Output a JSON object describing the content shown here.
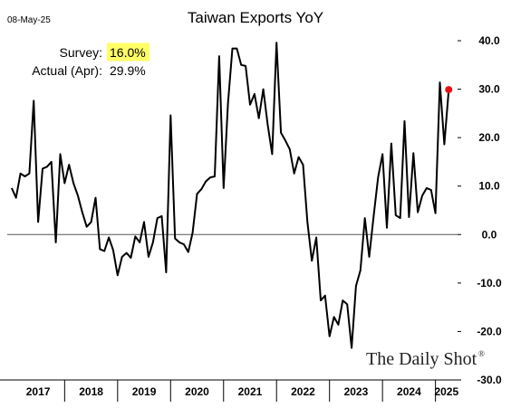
{
  "header": {
    "date": "08-May-25"
  },
  "annotations": {
    "survey_label": "Survey:",
    "survey_value": "16.0%",
    "actual_label": "Actual (Apr):",
    "actual_value": "29.9%",
    "highlight_color": "#ffff66"
  },
  "branding": {
    "name": "The Daily Shot",
    "mark": "®"
  },
  "colors": {
    "line": "#000000",
    "marker": "#e81010",
    "zero_line": "#555555"
  },
  "chart_data": {
    "type": "line",
    "title": "Taiwan Exports YoY",
    "xlabel": "",
    "ylabel": "",
    "ylim": [
      -30,
      40
    ],
    "xlim": [
      "2016-12",
      "2025-06"
    ],
    "y_ticks": [
      40,
      30,
      20,
      10,
      0,
      -10,
      -20,
      -30
    ],
    "y_tick_labels": [
      "40.0",
      "30.0",
      "20.0",
      "10.0",
      "0.0",
      "-10.0",
      "-20.0",
      "-30.0"
    ],
    "x_tick_labels": [
      "2017",
      "2018",
      "2019",
      "2020",
      "2021",
      "2022",
      "2023",
      "2024",
      "2025"
    ],
    "y_axis_position": "right",
    "grid": false,
    "series": [
      {
        "x": [
          "2017-01",
          "2017-02",
          "2017-03",
          "2017-04",
          "2017-05",
          "2017-06",
          "2017-07",
          "2017-08",
          "2017-09",
          "2017-10",
          "2017-11",
          "2017-12",
          "2018-01",
          "2018-02",
          "2018-03",
          "2018-04",
          "2018-05",
          "2018-06",
          "2018-07",
          "2018-08",
          "2018-09",
          "2018-10",
          "2018-11",
          "2018-12",
          "2019-01",
          "2019-02",
          "2019-03",
          "2019-04",
          "2019-05",
          "2019-06",
          "2019-07",
          "2019-08",
          "2019-09",
          "2019-10",
          "2019-11",
          "2019-12",
          "2020-01",
          "2020-02",
          "2020-03",
          "2020-04",
          "2020-05",
          "2020-06",
          "2020-07",
          "2020-08",
          "2020-09",
          "2020-10",
          "2020-11",
          "2020-12",
          "2021-01",
          "2021-02",
          "2021-03",
          "2021-04",
          "2021-05",
          "2021-06",
          "2021-07",
          "2021-08",
          "2021-09",
          "2021-10",
          "2021-11",
          "2021-12",
          "2022-01",
          "2022-02",
          "2022-03",
          "2022-04",
          "2022-05",
          "2022-06",
          "2022-07",
          "2022-08",
          "2022-09",
          "2022-10",
          "2022-11",
          "2022-12",
          "2023-01",
          "2023-02",
          "2023-03",
          "2023-04",
          "2023-05",
          "2023-06",
          "2023-07",
          "2023-08",
          "2023-09",
          "2023-10",
          "2023-11",
          "2023-12",
          "2024-01",
          "2024-02",
          "2024-03",
          "2024-04",
          "2024-05",
          "2024-06",
          "2024-07",
          "2024-08",
          "2024-09",
          "2024-10",
          "2024-11",
          "2024-12",
          "2025-01",
          "2025-02",
          "2025-03",
          "2025-04"
        ],
        "values": [
          9.6,
          7.6,
          12.6,
          12.0,
          12.6,
          27.6,
          2.6,
          13.6,
          14.0,
          15.0,
          -1.6,
          16.6,
          10.6,
          14.4,
          10.6,
          8.0,
          4.6,
          1.6,
          2.6,
          7.6,
          -3.0,
          -3.4,
          -0.6,
          -3.2,
          -8.4,
          -4.6,
          -3.8,
          -4.8,
          -0.4,
          -1.6,
          2.6,
          -4.6,
          -1.6,
          3.4,
          3.8,
          -7.8,
          24.6,
          -0.8,
          -1.6,
          -2.0,
          -3.6,
          0.4,
          8.4,
          9.4,
          11.0,
          11.8,
          12.0,
          36.8,
          9.6,
          27.0,
          38.4,
          38.4,
          35.0,
          34.8,
          26.8,
          29.0,
          24.0,
          30.0,
          22.6,
          16.6,
          39.6,
          21.0,
          19.4,
          17.6,
          12.6,
          16.0,
          14.4,
          2.6,
          -5.4,
          -0.6,
          -13.6,
          -12.6,
          -21.0,
          -17.0,
          -18.6,
          -13.6,
          -14.4,
          -23.4,
          -10.6,
          -7.4,
          3.4,
          -4.6,
          3.8,
          11.8,
          16.6,
          1.4,
          18.8,
          4.0,
          3.4,
          23.4,
          3.6,
          16.8,
          4.6,
          8.0,
          9.6,
          9.2,
          4.4,
          31.4,
          18.6,
          29.9
        ]
      }
    ],
    "highlight_point": {
      "x": "2025-04",
      "y": 29.9
    }
  }
}
